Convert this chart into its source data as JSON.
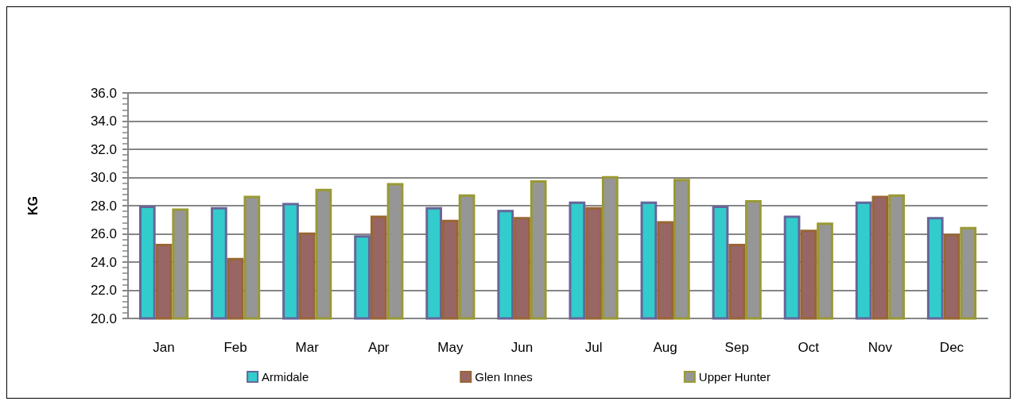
{
  "chart_data": {
    "type": "bar",
    "ylabel": "KG",
    "categories": [
      "Jan",
      "Feb",
      "Mar",
      "Apr",
      "May",
      "Jun",
      "Jul",
      "Aug",
      "Sep",
      "Oct",
      "Nov",
      "Dec"
    ],
    "series": [
      {
        "name": "Armidale",
        "color": "#33cccc",
        "values": [
          28.0,
          27.9,
          28.2,
          25.9,
          27.9,
          27.7,
          28.3,
          28.3,
          28.0,
          27.3,
          28.3,
          27.2
        ]
      },
      {
        "name": "Glen Innes",
        "color": "#996666",
        "values": [
          25.3,
          24.3,
          26.1,
          27.3,
          27.0,
          27.2,
          27.9,
          26.9,
          25.3,
          26.3,
          28.7,
          26.0
        ]
      },
      {
        "name": "Upper Hunter",
        "color": "#969696",
        "values": [
          27.8,
          28.7,
          29.2,
          29.6,
          28.8,
          29.8,
          30.1,
          29.9,
          28.4,
          26.8,
          28.8,
          26.5
        ]
      }
    ],
    "ylim": [
      20,
      36
    ],
    "yticks": [
      {
        "value": 20,
        "label": "20.0"
      },
      {
        "value": 22,
        "label": "22.0"
      },
      {
        "value": 24,
        "label": "24.0"
      },
      {
        "value": 26,
        "label": "26.0"
      },
      {
        "value": 28,
        "label": "28.0"
      },
      {
        "value": 30,
        "label": "30.0"
      },
      {
        "value": 32,
        "label": "32.0"
      },
      {
        "value": 34,
        "label": "34.0"
      },
      {
        "value": 36,
        "label": "36.0"
      }
    ],
    "grid": "y",
    "legend": "bottom"
  }
}
